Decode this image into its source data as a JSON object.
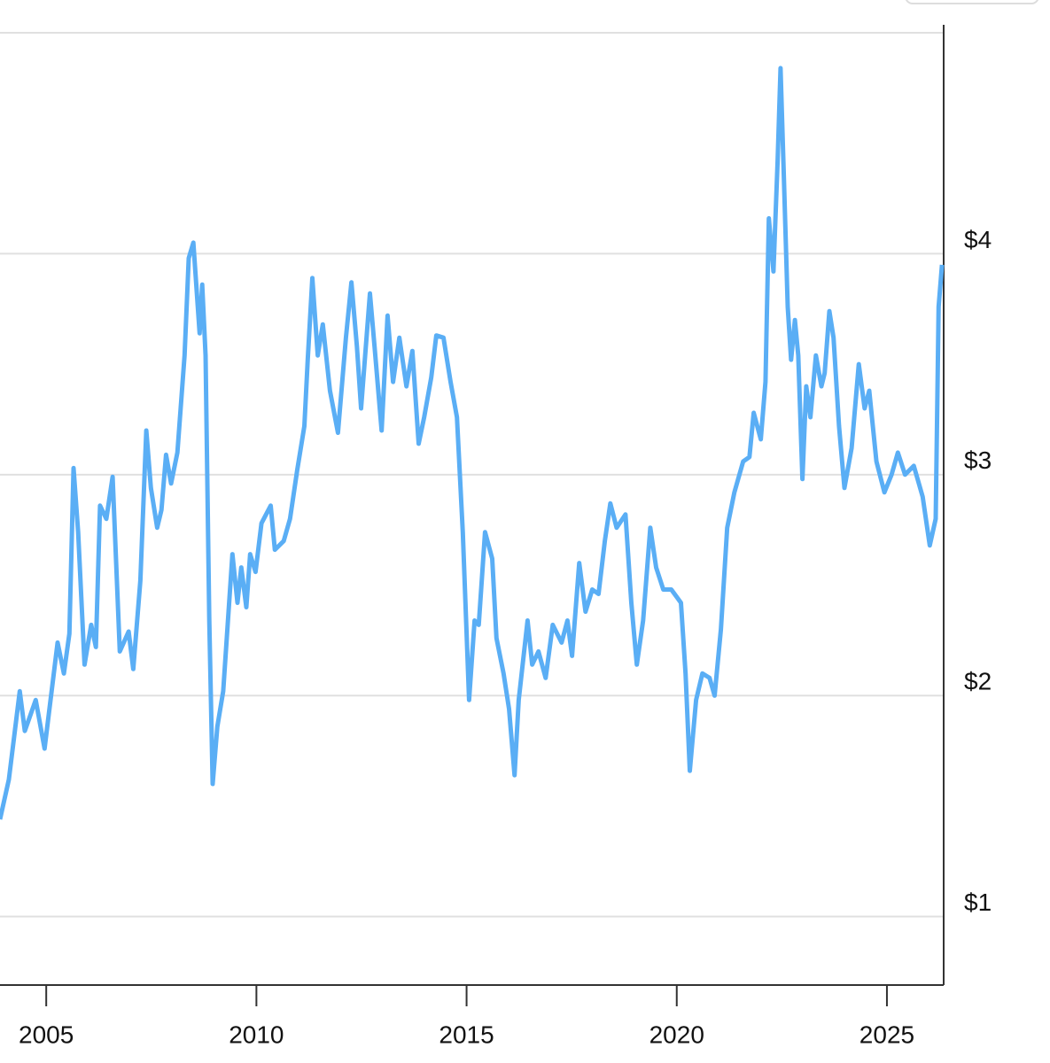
{
  "chart_data": {
    "type": "line",
    "color": "#5aaef5",
    "x": [
      2003.9,
      2004.11,
      2004.37,
      2004.49,
      2004.75,
      2004.96,
      2005.27,
      2005.42,
      2005.55,
      2005.65,
      2005.76,
      2005.91,
      2006.07,
      2006.18,
      2006.28,
      2006.43,
      2006.58,
      2006.75,
      2006.96,
      2007.07,
      2007.24,
      2007.38,
      2007.49,
      2007.64,
      2007.74,
      2007.85,
      2007.97,
      2008.12,
      2008.29,
      2008.39,
      2008.5,
      2008.65,
      2008.71,
      2008.79,
      2008.88,
      2008.96,
      2009.07,
      2009.21,
      2009.43,
      2009.55,
      2009.64,
      2009.76,
      2009.85,
      2009.98,
      2010.12,
      2010.34,
      2010.44,
      2010.65,
      2010.8,
      2010.97,
      2011.14,
      2011.22,
      2011.33,
      2011.46,
      2011.58,
      2011.75,
      2011.94,
      2012.13,
      2012.26,
      2012.39,
      2012.49,
      2012.7,
      2012.81,
      2012.98,
      2013.12,
      2013.25,
      2013.4,
      2013.57,
      2013.71,
      2013.86,
      2013.99,
      2014.16,
      2014.28,
      2014.45,
      2014.62,
      2014.77,
      2014.91,
      2015.06,
      2015.19,
      2015.29,
      2015.44,
      2015.61,
      2015.71,
      2015.88,
      2016.01,
      2016.14,
      2016.24,
      2016.45,
      2016.56,
      2016.71,
      2016.88,
      2017.05,
      2017.26,
      2017.4,
      2017.51,
      2017.68,
      2017.83,
      2017.99,
      2018.14,
      2018.29,
      2018.42,
      2018.57,
      2018.78,
      2018.92,
      2019.05,
      2019.2,
      2019.37,
      2019.51,
      2019.68,
      2019.87,
      2020.1,
      2020.21,
      2020.31,
      2020.46,
      2020.61,
      2020.78,
      2020.9,
      2021.05,
      2021.2,
      2021.37,
      2021.58,
      2021.73,
      2021.83,
      2022.0,
      2022.11,
      2022.19,
      2022.3,
      2022.4,
      2022.47,
      2022.55,
      2022.64,
      2022.72,
      2022.81,
      2022.89,
      2022.99,
      2023.08,
      2023.18,
      2023.31,
      2023.44,
      2023.52,
      2023.63,
      2023.73,
      2023.86,
      2023.99,
      2024.16,
      2024.33,
      2024.47,
      2024.58,
      2024.75,
      2024.94,
      2025.11,
      2025.26,
      2025.43,
      2025.64,
      2025.85,
      2026.02,
      2026.16,
      2026.23,
      2026.31
    ],
    "values": [
      1.44,
      1.62,
      2.02,
      1.84,
      1.98,
      1.76,
      2.24,
      2.1,
      2.28,
      3.03,
      2.74,
      2.14,
      2.32,
      2.22,
      2.86,
      2.8,
      2.99,
      2.2,
      2.29,
      2.12,
      2.52,
      3.2,
      2.94,
      2.76,
      2.84,
      3.09,
      2.96,
      3.1,
      3.54,
      3.98,
      4.05,
      3.64,
      3.86,
      3.54,
      2.34,
      1.6,
      1.86,
      2.02,
      2.64,
      2.42,
      2.58,
      2.4,
      2.64,
      2.56,
      2.78,
      2.86,
      2.66,
      2.7,
      2.8,
      3.02,
      3.22,
      3.52,
      3.89,
      3.54,
      3.68,
      3.38,
      3.19,
      3.62,
      3.87,
      3.58,
      3.3,
      3.82,
      3.58,
      3.2,
      3.72,
      3.42,
      3.62,
      3.4,
      3.56,
      3.14,
      3.26,
      3.44,
      3.63,
      3.62,
      3.42,
      3.26,
      2.74,
      1.98,
      2.34,
      2.32,
      2.74,
      2.62,
      2.26,
      2.1,
      1.94,
      1.64,
      1.98,
      2.34,
      2.14,
      2.2,
      2.08,
      2.32,
      2.24,
      2.34,
      2.18,
      2.6,
      2.38,
      2.48,
      2.46,
      2.7,
      2.87,
      2.76,
      2.82,
      2.42,
      2.14,
      2.34,
      2.76,
      2.58,
      2.48,
      2.48,
      2.42,
      2.1,
      1.66,
      1.98,
      2.1,
      2.08,
      2.0,
      2.3,
      2.76,
      2.92,
      3.06,
      3.08,
      3.28,
      3.16,
      3.42,
      4.16,
      3.92,
      4.42,
      4.84,
      4.34,
      3.76,
      3.52,
      3.7,
      3.54,
      2.98,
      3.4,
      3.26,
      3.54,
      3.4,
      3.46,
      3.74,
      3.62,
      3.22,
      2.94,
      3.12,
      3.5,
      3.3,
      3.38,
      3.06,
      2.92,
      3.0,
      3.1,
      3.0,
      3.04,
      2.9,
      2.68,
      2.8,
      3.76,
      3.95
    ],
    "xlim": [
      2003.9,
      2026.35
    ],
    "xticks": [
      2005,
      2010,
      2015,
      2020,
      2025
    ],
    "ylim": [
      0.69,
      5
    ],
    "yticks": [
      {
        "value": 1,
        "label": "$1"
      },
      {
        "value": 2,
        "label": "$2"
      },
      {
        "value": 3,
        "label": "$3"
      },
      {
        "value": 4,
        "label": "$4"
      }
    ],
    "grid": true
  }
}
